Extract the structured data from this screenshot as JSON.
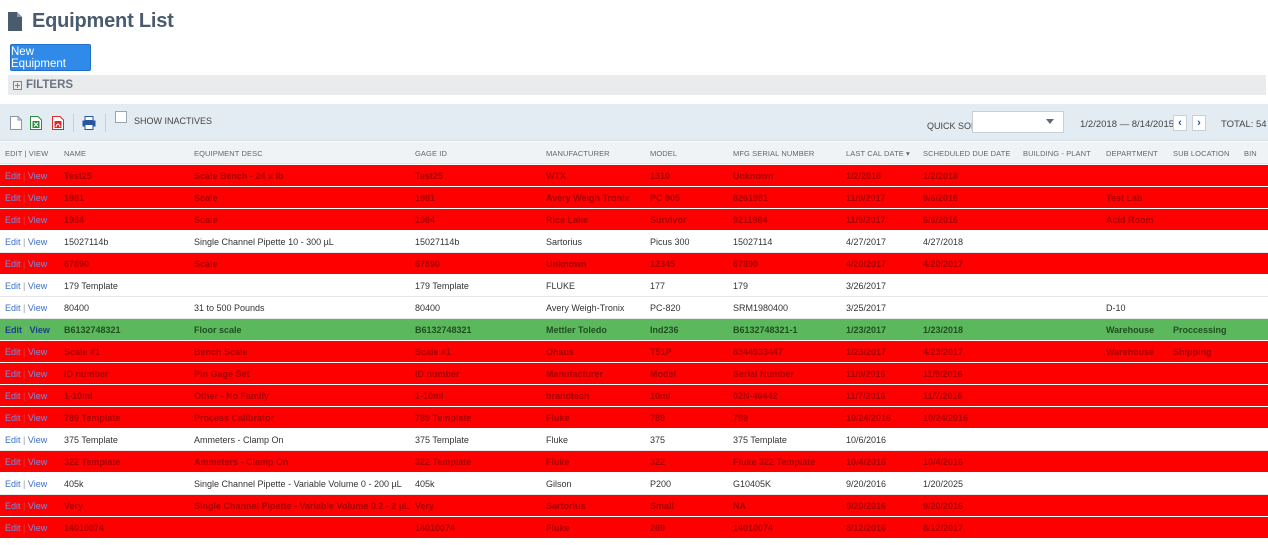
{
  "page": {
    "title": "Equipment List"
  },
  "actions": {
    "new_equipment": "New Equipment"
  },
  "filters": {
    "label": "FILTERS"
  },
  "toolbar": {
    "show_inactives": "SHOW INACTIVES",
    "quick_sort_label": "QUICK SORT",
    "date_range": "1/2/2018 — 8/14/2015",
    "total": "TOTAL: 54",
    "icons": [
      "document-icon",
      "excel-icon",
      "pdf-icon",
      "print-icon"
    ]
  },
  "table": {
    "columns": [
      "EDIT | VIEW",
      "NAME",
      "EQUIPMENT DESC",
      "GAGE ID",
      "MANUFACTURER",
      "MODEL",
      "MFG SERIAL NUMBER",
      "LAST CAL DATE ▾",
      "SCHEDULED DUE DATE",
      "BUILDING - PLANT",
      "DEPARTMENT",
      "SUB LOCATION",
      "BIN"
    ],
    "edit_label": "Edit",
    "view_label": "View",
    "rows": [
      {
        "status": "red",
        "name": "Test25",
        "desc": "Scale Bench - 24 x lb",
        "gage": "Test25",
        "mfr": "WTX",
        "model": "1310",
        "serial": "Unknown",
        "last_cal": "1/2/2018",
        "due": "1/2/2018",
        "building": "",
        "dept": "",
        "subloc": ""
      },
      {
        "status": "red",
        "name": "1981",
        "desc": "Scale",
        "gage": "1981",
        "mfr": "Avery Weigh Tronix",
        "model": "PC 905",
        "serial": "8261981",
        "last_cal": "11/9/2017",
        "due": "9/6/2016",
        "building": "",
        "dept": "Test Lab",
        "subloc": ""
      },
      {
        "status": "red",
        "name": "1984",
        "desc": "Scale",
        "gage": "1984",
        "mfr": "Rice Lake",
        "model": "Survivor",
        "serial": "9211984",
        "last_cal": "11/9/2017",
        "due": "6/6/2016",
        "building": "",
        "dept": "Acid Room",
        "subloc": ""
      },
      {
        "status": "white",
        "name": "15027114b",
        "desc": "Single Channel Pipette 10 - 300 µL",
        "gage": "15027114b",
        "mfr": "Sartorius",
        "model": "Picus 300",
        "serial": "15027114",
        "last_cal": "4/27/2017",
        "due": "4/27/2018",
        "building": "",
        "dept": "",
        "subloc": ""
      },
      {
        "status": "red",
        "name": "67890",
        "desc": "Scale",
        "gage": "67890",
        "mfr": "Unknown",
        "model": "12345",
        "serial": "67890",
        "last_cal": "4/20/2017",
        "due": "4/20/2017",
        "building": "",
        "dept": "",
        "subloc": ""
      },
      {
        "status": "white",
        "name": "179 Template",
        "desc": "",
        "gage": "179 Template",
        "mfr": "FLUKE",
        "model": "177",
        "serial": "179",
        "last_cal": "3/26/2017",
        "due": "",
        "building": "",
        "dept": "",
        "subloc": ""
      },
      {
        "status": "white",
        "name": "80400",
        "desc": "31 to 500 Pounds",
        "gage": "80400",
        "mfr": "Avery Weigh-Tronix",
        "model": "PC-820",
        "serial": "SRM1980400",
        "last_cal": "3/25/2017",
        "due": "",
        "building": "",
        "dept": "D-10",
        "subloc": ""
      },
      {
        "status": "green",
        "name": "B6132748321",
        "desc": "Floor scale",
        "gage": "B6132748321",
        "mfr": "Mettler Toledo",
        "model": "Ind236",
        "serial": "B6132748321-1",
        "last_cal": "1/23/2017",
        "due": "1/23/2018",
        "building": "",
        "dept": "Warehouse",
        "subloc": "Proccessing"
      },
      {
        "status": "red",
        "name": "Scale #1",
        "desc": "Bench Scale",
        "gage": "Scale #1",
        "mfr": "Ohaus",
        "model": "T51P",
        "serial": "8344933447",
        "last_cal": "1/23/2017",
        "due": "4/23/2017",
        "building": "",
        "dept": "Warehouse",
        "subloc": "Shipping"
      },
      {
        "status": "red",
        "name": "ID number",
        "desc": "Pin Gage Set",
        "gage": "ID number",
        "mfr": "Manufacturer",
        "model": "Model",
        "serial": "Serial Number",
        "last_cal": "11/9/2016",
        "due": "11/9/2016",
        "building": "",
        "dept": "",
        "subloc": ""
      },
      {
        "status": "red",
        "name": "1-10ml",
        "desc": "Other - No Family",
        "gage": "1-10ml",
        "mfr": "brandtech",
        "model": "10ml",
        "serial": "02N-46442",
        "last_cal": "11/7/2016",
        "due": "11/7/2016",
        "building": "",
        "dept": "",
        "subloc": ""
      },
      {
        "status": "red",
        "name": "789 Template",
        "desc": "Process Calibrator",
        "gage": "789 Template",
        "mfr": "Fluke",
        "model": "789",
        "serial": "789",
        "last_cal": "10/24/2016",
        "due": "10/24/2016",
        "building": "",
        "dept": "",
        "subloc": ""
      },
      {
        "status": "white",
        "name": "375 Template",
        "desc": "Ammeters - Clamp On",
        "gage": "375 Template",
        "mfr": "Fluke",
        "model": "375",
        "serial": "375 Template",
        "last_cal": "10/6/2016",
        "due": "",
        "building": "",
        "dept": "",
        "subloc": ""
      },
      {
        "status": "red",
        "name": "322 Template",
        "desc": "Ammeters - Clamp On",
        "gage": "322 Template",
        "mfr": "Fluke",
        "model": "322",
        "serial": "Fluke 322 Template",
        "last_cal": "10/4/2016",
        "due": "10/4/2016",
        "building": "",
        "dept": "",
        "subloc": ""
      },
      {
        "status": "white",
        "name": "405k",
        "desc": "Single Channel Pipette - Variable Volume 0 - 200 µL",
        "gage": "405k",
        "mfr": "Gilson",
        "model": "P200",
        "serial": "G10405K",
        "last_cal": "9/20/2016",
        "due": "1/20/2025",
        "building": "",
        "dept": "",
        "subloc": ""
      },
      {
        "status": "red",
        "name": "Very",
        "desc": "Single Channel Pipette - Variable Volume 0.2 - 2 µL",
        "gage": "Very",
        "mfr": "Sartorius",
        "model": "Small",
        "serial": "NA",
        "last_cal": "9/20/2016",
        "due": "9/20/2016",
        "building": "",
        "dept": "",
        "subloc": ""
      },
      {
        "status": "red",
        "name": "14010074",
        "desc": "",
        "gage": "14010074",
        "mfr": "Fluke",
        "model": "289",
        "serial": "14010074",
        "last_cal": "8/12/2016",
        "due": "8/12/2017",
        "building": "",
        "dept": "",
        "subloc": ""
      }
    ]
  }
}
